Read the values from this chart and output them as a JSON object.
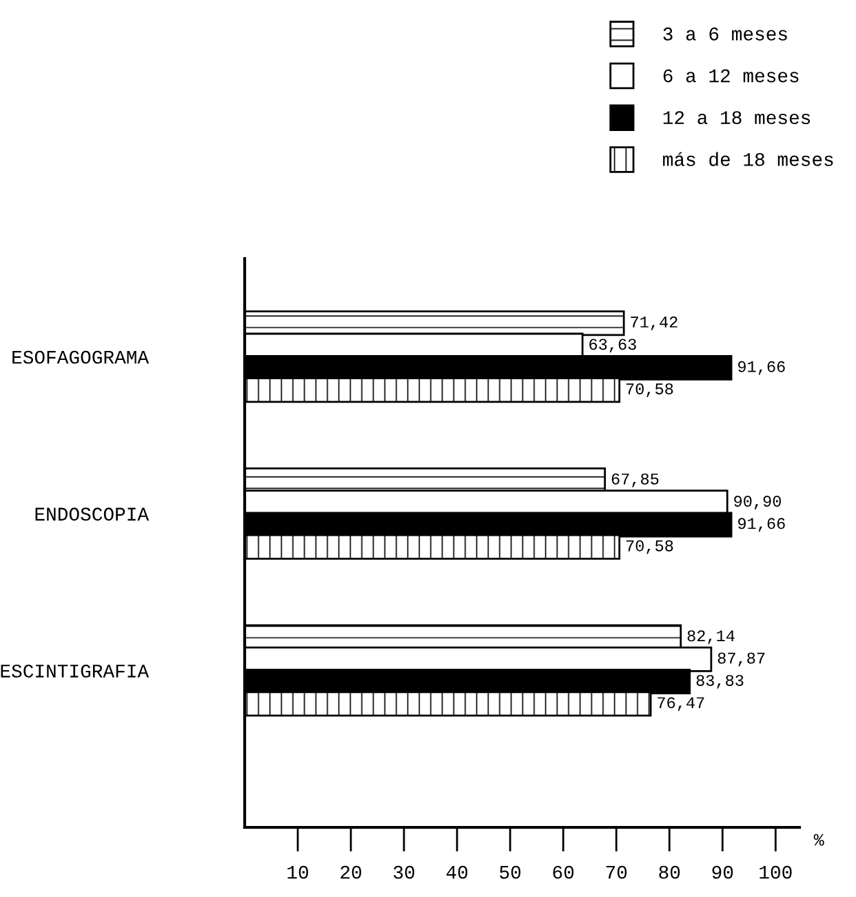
{
  "chart_data": {
    "type": "bar",
    "orientation": "horizontal",
    "xlabel": "%",
    "categories": [
      "ESOFAGOGRAMA",
      "ENDOSCOPIA",
      "ESCINTIGRAFIA"
    ],
    "series": [
      {
        "name": "3 a 6 meses",
        "color": "#000000",
        "values": [
          71.42,
          67.85,
          82.14
        ],
        "value_labels": [
          "71,42",
          "67,85",
          "82,14"
        ]
      },
      {
        "name": "6 a 12 meses",
        "color": "#ffffff",
        "values": [
          63.63,
          90.9,
          87.87
        ],
        "value_labels": [
          "63,63",
          "90,90",
          "87,87"
        ]
      },
      {
        "name": "12 a 18 meses",
        "color": "#000000",
        "values": [
          91.66,
          91.66,
          83.83
        ],
        "value_labels": [
          "91,66",
          "91,66",
          "83,83"
        ]
      },
      {
        "name": "más de 18 meses",
        "color": "#000000",
        "values": [
          70.58,
          70.58,
          76.47
        ],
        "value_labels": [
          "70,58",
          "70,58",
          "76,47"
        ]
      }
    ],
    "xlim": [
      0,
      104.5
    ],
    "xticks": [
      10,
      20,
      30,
      40,
      50,
      60,
      70,
      80,
      90,
      100
    ],
    "grid": false,
    "legend": "top right"
  }
}
